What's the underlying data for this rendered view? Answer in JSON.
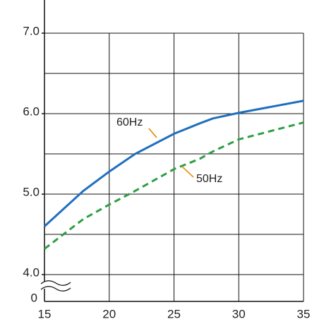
{
  "chart_data": {
    "type": "line",
    "x": [
      15,
      18,
      20,
      22,
      25,
      27,
      28,
      30,
      35
    ],
    "series": [
      {
        "name": "60Hz",
        "color": "#1f6fbf",
        "dash": false,
        "values": [
          4.6,
          5.04,
          5.28,
          5.5,
          5.75,
          5.88,
          5.94,
          6.01,
          6.16
        ]
      },
      {
        "name": "50Hz",
        "color": "#2e9e44",
        "dash": true,
        "values": [
          4.32,
          4.69,
          4.87,
          5.04,
          5.31,
          5.44,
          5.53,
          5.68,
          5.89
        ]
      }
    ],
    "xlim": [
      15,
      35
    ],
    "xticks": [
      15,
      20,
      25,
      30,
      35
    ],
    "ylim": [
      3.667,
      7.412
    ],
    "yticks": [
      {
        "value": 4,
        "label": "4.0"
      },
      {
        "value": 5,
        "label": "5.0"
      },
      {
        "value": 6,
        "label": "6.0"
      },
      {
        "value": 7,
        "label": "7.0"
      }
    ],
    "ygrid": [
      4,
      4.5,
      5,
      5.5,
      6,
      6.5,
      7
    ],
    "y_break_label": "0",
    "grid": true
  }
}
